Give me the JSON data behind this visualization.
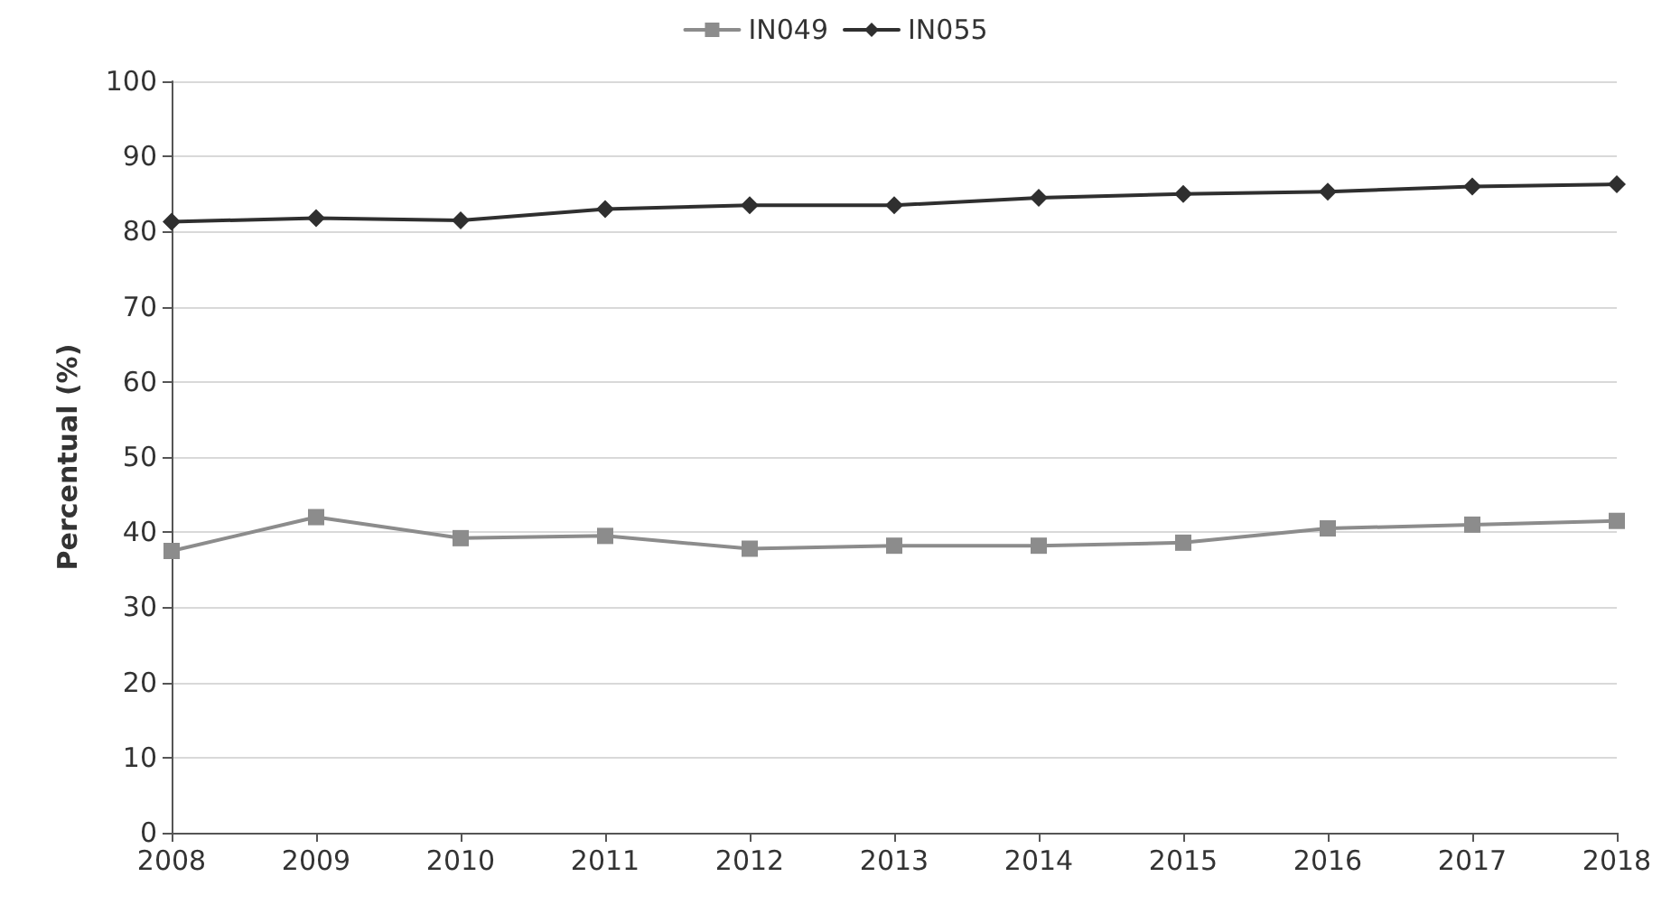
{
  "chart_data": {
    "type": "line",
    "ylabel": "Percentual (%)",
    "categories": [
      "2008",
      "2009",
      "2010",
      "2011",
      "2012",
      "2013",
      "2014",
      "2015",
      "2016",
      "2017",
      "2018"
    ],
    "series": [
      {
        "name": "IN049",
        "color": "#8c8c8c",
        "marker": "square",
        "values": [
          37.5,
          42,
          39.2,
          39.5,
          37.8,
          38.2,
          38.2,
          38.6,
          40.5,
          41,
          41.5
        ]
      },
      {
        "name": "IN055",
        "color": "#2f2f2f",
        "marker": "diamond",
        "values": [
          81.3,
          81.8,
          81.5,
          83,
          83.5,
          83.5,
          84.5,
          85,
          85.3,
          86,
          86.3
        ]
      }
    ],
    "ylim": [
      0,
      100
    ],
    "yticks": [
      0,
      10,
      20,
      30,
      40,
      50,
      60,
      70,
      80,
      90,
      100
    ],
    "grid": "y",
    "legend": "top",
    "line_style": "solid"
  }
}
